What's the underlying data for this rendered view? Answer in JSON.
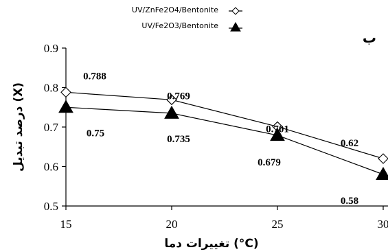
{
  "chart_data": {
    "type": "line",
    "panel_label": "ب",
    "xlabel": "تغییرات دما (°C)",
    "ylabel": "درصد تبدیل (X)",
    "x": [
      15,
      20,
      25,
      30
    ],
    "x_tick_labels": [
      "15",
      "20",
      "25",
      "30"
    ],
    "y_tick_labels": [
      "0.5",
      "0.6",
      "0.7",
      "0.8",
      "0.9"
    ],
    "xlim": [
      15,
      30
    ],
    "ylim": [
      0.5,
      0.9
    ],
    "grid": false,
    "legend_position": "top-center",
    "series": [
      {
        "name": "UV/ZnFe2O4/Bentonite",
        "marker": "open-diamond",
        "color": "#000000",
        "values": [
          0.788,
          0.769,
          0.701,
          0.62
        ],
        "data_labels": [
          "0.788",
          "0.769",
          "0.701",
          "0.62"
        ]
      },
      {
        "name": "UV/Fe2O3/Bentonite",
        "marker": "filled-triangle",
        "color": "#000000",
        "values": [
          0.75,
          0.735,
          0.679,
          0.58
        ],
        "data_labels": [
          "0.75",
          "0.735",
          "0.679",
          "0.58"
        ]
      }
    ]
  }
}
